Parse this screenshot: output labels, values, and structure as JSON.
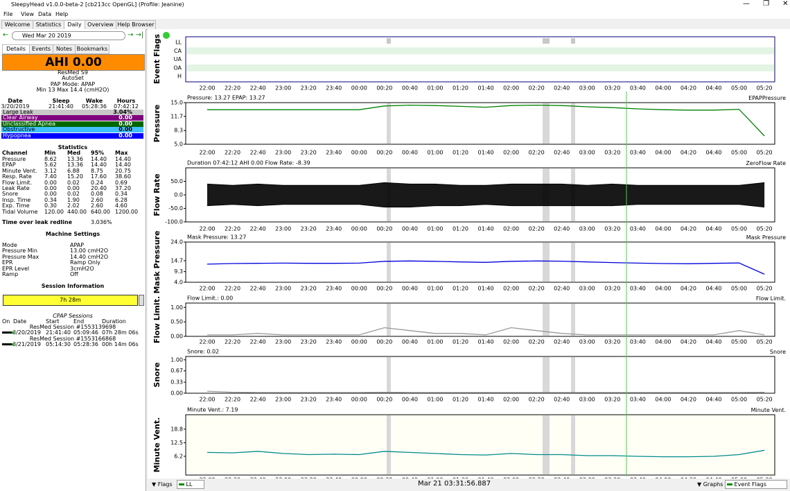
{
  "window": {
    "title": "SleepyHead v1.0.0-beta-2 [cb213cc OpenGL] (Profile: Jeanine)",
    "menu": [
      "File",
      "View",
      "Data",
      "Help"
    ],
    "tabs": [
      "Welcome",
      "Statistics",
      "Daily",
      "Overview",
      "Help Browser"
    ]
  },
  "left": {
    "date": "Wed Mar 20 2019",
    "tabs": [
      "Details",
      "Events",
      "Notes",
      "Bookmarks"
    ],
    "ahi": "AHI 0.00",
    "machine": [
      "ResMed S9",
      "AutoSet",
      "PAP Mode: APAP",
      "Min 13 Max 14.4 (cmH2O)"
    ],
    "summary": {
      "header": [
        "Date",
        "Sleep",
        "Wake",
        "Hours"
      ],
      "row": [
        "3/20/2019",
        "21:41:40",
        "05:28:36",
        "07:42:12"
      ]
    },
    "indices": [
      {
        "name": "Large Leak",
        "value": "3.04%",
        "color": "#c8c8c8",
        "text": "#000000"
      },
      {
        "name": "Clear Airway",
        "value": "0.00",
        "color": "#800080",
        "text": "#ffffff"
      },
      {
        "name": "Unclassified Apnea",
        "value": "0.00",
        "color": "#006600",
        "text": "#ffffff"
      },
      {
        "name": "Obstructive",
        "value": "0.00",
        "color": "#40c0ff",
        "text": "#000000"
      },
      {
        "name": "Hypopnea",
        "value": "0.00",
        "color": "#0000ff",
        "text": "#ffffff"
      }
    ],
    "statistics": {
      "title": "Statistics",
      "header": [
        "Channel",
        "Min",
        "Med",
        "95%",
        "Max"
      ],
      "rows": [
        [
          "Pressure",
          "8.62",
          "13.36",
          "14.40",
          "14.40"
        ],
        [
          "EPAP",
          "5.62",
          "13.36",
          "14.40",
          "14.40"
        ],
        [
          "Minute Vent.",
          "3.12",
          "6.88",
          "8.75",
          "20.75"
        ],
        [
          "Resp. Rate",
          "7.40",
          "15.20",
          "17.60",
          "38.60"
        ],
        [
          "Flow Limit.",
          "0.00",
          "0.02",
          "0.24",
          "0.69"
        ],
        [
          "Leak Rate",
          "0.00",
          "0.00",
          "20.40",
          "37.20"
        ],
        [
          "Snore",
          "0.00",
          "0.02",
          "0.08",
          "0.34"
        ],
        [
          "Insp. Time",
          "0.34",
          "1.90",
          "2.60",
          "6.28"
        ],
        [
          "Exp. Time",
          "0.30",
          "2.02",
          "2.60",
          "4.60"
        ],
        [
          "Tidal Volume",
          "120.00",
          "440.00",
          "640.00",
          "1200.00"
        ]
      ]
    },
    "leak_redline": {
      "label": "Time over leak redline",
      "value": "3.036%"
    },
    "settings": {
      "title": "Machine Settings",
      "rows": [
        [
          "Mode",
          "APAP"
        ],
        [
          "Pressure Min",
          "13.00 cmH2O"
        ],
        [
          "Pressure Max",
          "14.40 cmH2O"
        ],
        [
          "EPR",
          "Ramp Only"
        ],
        [
          "EPR Level",
          "3cmH2O"
        ],
        [
          "Ramp",
          "Off"
        ]
      ]
    },
    "session_info": {
      "title": "Session Information",
      "bar": "7h 28m",
      "cpap_title": "CPAP Sessions",
      "header": [
        "On",
        "Date",
        "Start",
        "End",
        "Duration"
      ],
      "sessions": [
        {
          "name": "ResMed Session #1553139698",
          "date": "3/20/2019",
          "start": "21:41:40",
          "end": "05:09:46",
          "duration": "07h 28m 06s"
        },
        {
          "name": "ResMed Session #1553166868",
          "date": "3/21/2019",
          "start": "05:14:30",
          "end": "05:28:36",
          "duration": "00h 14m 06s"
        }
      ]
    }
  },
  "times": [
    "22:00",
    "22:20",
    "22:40",
    "23:00",
    "23:20",
    "23:40",
    "00:00",
    "00:20",
    "00:40",
    "01:00",
    "01:20",
    "01:40",
    "02:00",
    "02:20",
    "02:40",
    "03:00",
    "03:20",
    "03:40",
    "04:00",
    "04:20",
    "04:40",
    "05:00",
    "05:20"
  ],
  "event_flags": {
    "title": "Event Flags",
    "rows": [
      "LL",
      "CA",
      "UA",
      "OA",
      "H"
    ]
  },
  "graphs": [
    {
      "title": "Pressure",
      "header": "Pressure: 13.27 EPAP: 13.27",
      "legend": "EPAP",
      "legend2": "Pressure",
      "ylim": [
        5,
        15
      ],
      "yticks": [
        {
          "value": 5,
          "label": "5.0"
        },
        {
          "value": 8.3,
          "label": "8.3"
        },
        {
          "value": 11.7,
          "label": "11.7"
        },
        {
          "value": 15,
          "label": "15.0"
        }
      ],
      "color": "#008000",
      "values": [
        13.3,
        13.3,
        13.3,
        13.3,
        13.3,
        13.3,
        13.3,
        14.2,
        14.4,
        14.3,
        14.1,
        13.9,
        14.3,
        14.4,
        14.3,
        14.0,
        13.8,
        13.5,
        13.3,
        13.2,
        13.2,
        13.4,
        7.0
      ]
    },
    {
      "title": "Flow Rate",
      "header": "Duration 07:42:12 AHI 0.00 Flow Rate: -8.39",
      "legend": "Zero",
      "legend2": "Flow Rate",
      "ylim": [
        -100,
        100
      ],
      "yticks": [
        {
          "value": -100,
          "label": "-100.0"
        },
        {
          "value": -50,
          "label": "-50.0"
        },
        {
          "value": 0,
          "label": "0.0"
        },
        {
          "value": 50,
          "label": "50.0"
        }
      ],
      "color": "#000000",
      "values": [
        40,
        35,
        40,
        35,
        35,
        35,
        35,
        45,
        40,
        40,
        35,
        35,
        40,
        40,
        40,
        35,
        40,
        35,
        35,
        35,
        35,
        35,
        45
      ],
      "values_low": [
        -40,
        -35,
        -40,
        -35,
        -35,
        -35,
        -35,
        -45,
        -45,
        -40,
        -40,
        -35,
        -40,
        -40,
        -40,
        -40,
        -40,
        -35,
        -35,
        -35,
        -35,
        -35,
        -45
      ]
    },
    {
      "title": "Mask Pressure",
      "header": "Mask Pressure: 13.27",
      "legend": "Mask Pressure",
      "ylim": [
        4,
        24
      ],
      "yticks": [
        {
          "value": 4,
          "label": "4.0"
        },
        {
          "value": 9.3,
          "label": "9.3"
        },
        {
          "value": 14.7,
          "label": "14.7"
        },
        {
          "value": 24,
          "label": "24.0"
        }
      ],
      "color": "#0000dd",
      "values": [
        13.0,
        13.3,
        13.4,
        13.5,
        13.4,
        13.4,
        13.5,
        14.4,
        14.6,
        14.4,
        14.1,
        13.9,
        14.4,
        14.6,
        14.5,
        14.1,
        13.8,
        13.5,
        13.3,
        13.2,
        13.4,
        13.6,
        8.0
      ]
    },
    {
      "title": "Flow Limit.",
      "header": "Flow Limit.: 0.00",
      "legend": "Flow Limit.",
      "ylim": [
        0,
        1.15
      ],
      "yticks": [
        {
          "value": 0,
          "label": "0.00"
        },
        {
          "value": 0.5,
          "label": "0.50"
        },
        {
          "value": 1,
          "label": "1.00"
        }
      ],
      "color": "#999999",
      "values": [
        0.05,
        0.05,
        0.1,
        0.05,
        0.05,
        0.05,
        0.05,
        0.3,
        0.2,
        0.1,
        0.1,
        0.05,
        0.3,
        0.2,
        0.1,
        0.05,
        0.05,
        0.05,
        0.05,
        0.05,
        0.05,
        0.2,
        0.05
      ]
    },
    {
      "title": "Snore",
      "header": "Snore: 0.02",
      "legend": "Snore",
      "ylim": [
        0,
        1.1
      ],
      "yticks": [
        {
          "value": 0,
          "label": "0.00"
        },
        0.33,
        0.67,
        {
          "value": 1,
          "label": "1.00"
        }
      ],
      "color": "#999999",
      "values": [
        0.06,
        0.03,
        0.02,
        0.02,
        0.02,
        0.02,
        0.02,
        0.03,
        0.02,
        0.02,
        0.02,
        0.02,
        0.02,
        0.02,
        0.02,
        0.02,
        0.02,
        0.02,
        0.02,
        0.02,
        0.02,
        0.02,
        0.03
      ]
    },
    {
      "title": "Minute Vent.",
      "header": "Minute Vent.: 7.19",
      "legend": "Minute Vent.",
      "ylim": [
        -2.5,
        25.5
      ],
      "yticks": [
        6.2,
        12.5,
        18.8
      ],
      "color": "#008b8b",
      "values": [
        8.0,
        7.8,
        8.5,
        7.5,
        7.0,
        7.2,
        7.0,
        8.5,
        8.0,
        7.5,
        7.0,
        6.8,
        7.5,
        7.0,
        7.0,
        6.5,
        6.5,
        6.2,
        6.0,
        6.0,
        6.2,
        7.0,
        9.0
      ]
    }
  ],
  "bottom": {
    "flags": "Flags",
    "flag": "LL",
    "time": "Mar 21 03:31:56.887",
    "graphs": "Graphs",
    "graph": "Event Flags"
  }
}
